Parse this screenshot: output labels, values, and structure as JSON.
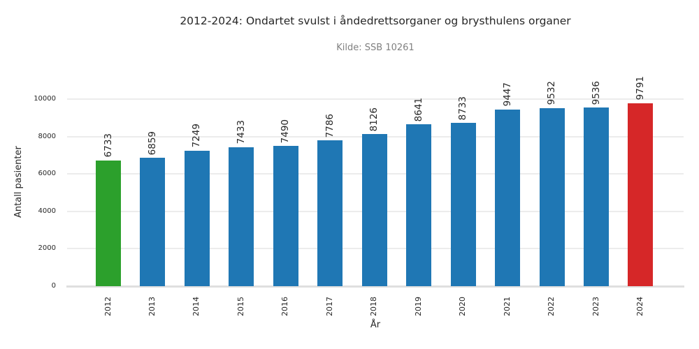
{
  "chart_data": {
    "type": "bar",
    "title": "2012-2024: Ondartet svulst i åndedrettsorganer og brysthulens organer",
    "subtitle": "Kilde: SSB 10261",
    "xlabel": "År",
    "ylabel": "Antall pasienter",
    "categories": [
      "2012",
      "2013",
      "2014",
      "2015",
      "2016",
      "2017",
      "2018",
      "2019",
      "2020",
      "2021",
      "2022",
      "2023",
      "2024"
    ],
    "values": [
      6733,
      6859,
      7249,
      7433,
      7490,
      7786,
      8126,
      8641,
      8733,
      9447,
      9532,
      9536,
      9791
    ],
    "bar_value_labels": [
      "6733",
      "6859",
      "7249",
      "7433",
      "7490",
      "7786",
      "8126",
      "8641",
      "8733",
      "9447",
      "9532",
      "9536",
      "9791"
    ],
    "bar_colors": [
      "#2ca02c",
      "#1f77b4",
      "#1f77b4",
      "#1f77b4",
      "#1f77b4",
      "#1f77b4",
      "#1f77b4",
      "#1f77b4",
      "#1f77b4",
      "#1f77b4",
      "#1f77b4",
      "#1f77b4",
      "#d62728"
    ],
    "yticks": [
      0,
      2000,
      4000,
      6000,
      8000,
      10000
    ],
    "ylim": [
      0,
      11100
    ],
    "grid": "horizontal-only",
    "legend": "none",
    "xtick_rotation": 90,
    "value_label_rotation": 90,
    "colors": {
      "default_bar": "#1f77b4",
      "first_bar_highlight": "#2ca02c",
      "last_bar_highlight": "#d62728",
      "gridline": "#ececec",
      "axis_line": "#dfdfdf",
      "text": "#262626",
      "subtitle_text": "#808080"
    }
  }
}
